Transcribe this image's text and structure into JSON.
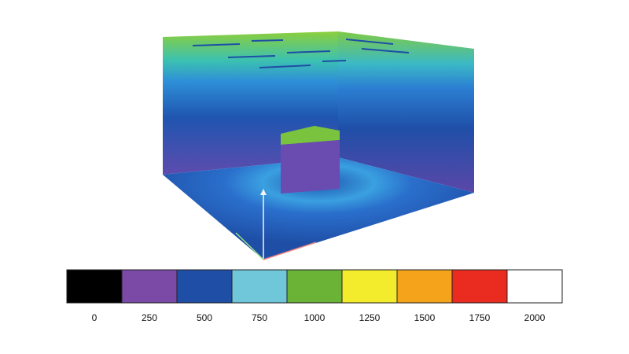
{
  "legend": {
    "colors": [
      "#000000",
      "#7b4aa6",
      "#1e4ea6",
      "#70c7da",
      "#6bb337",
      "#f3ec2d",
      "#f5a31b",
      "#e92b20",
      "#ffffff"
    ],
    "ticks": [
      0,
      250,
      500,
      750,
      1000,
      1250,
      1500,
      1750,
      2000
    ]
  }
}
